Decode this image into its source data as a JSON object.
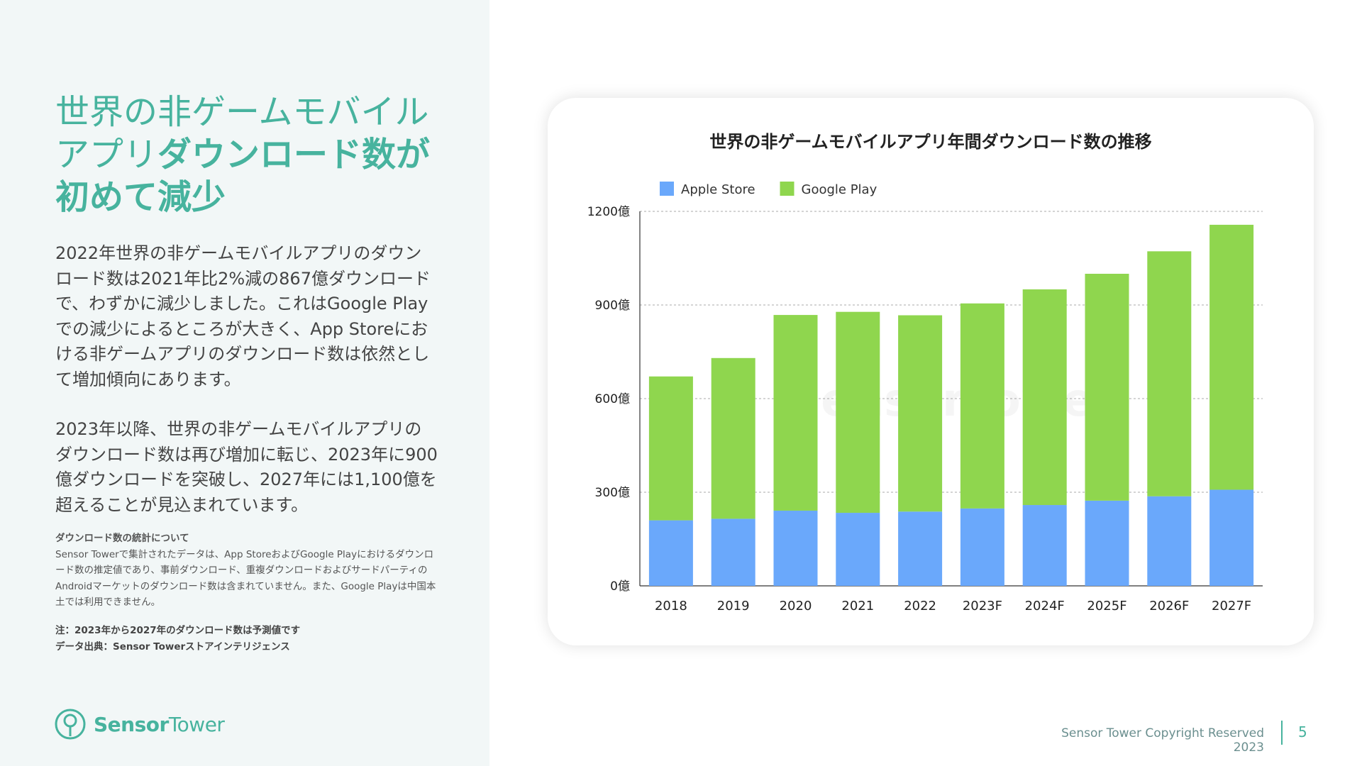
{
  "headline": {
    "part1": "世界の非ゲームモバイル",
    "part2": "アプリ",
    "part3": "ダウンロード数が初めて減少"
  },
  "body": {
    "para1": "2022年世界の非ゲームモバイルアプリのダウンロード数は2021年比2%減の867億ダウンロードで、わずかに減少しました。これはGoogle Playでの減少によるところが大きく、App Storeにおける非ゲームアプリのダウンロード数は依然として増加傾向にあります。",
    "para2": "2023年以降、世界の非ゲームモバイルアプリのダウンロード数は再び増加に転じ、2023年に900億ダウンロードを突破し、2027年には1,100億を超えることが見込まれています。"
  },
  "notes": {
    "title": "ダウンロード数の統計について",
    "text": "Sensor Towerで集計されたデータは、App StoreおよびGoogle Playにおけるダウンロード数の推定値であり、事前ダウンロード、重複ダウンロードおよびサードパーティのAndroidマーケットのダウンロード数は含まれていません。また、Google Playは中国本土では利用できません。",
    "note": "注：2023年から2027年のダウンロード数は予測値です",
    "source": "データ出典：Sensor Towerストアインテリジェンス"
  },
  "brand": {
    "name_bold": "Sensor",
    "name_light": "Tower",
    "icon": "sensor-tower-logo-icon"
  },
  "footer": {
    "copyright": "Sensor Tower Copyright Reserved 2023",
    "page": "5"
  },
  "colors": {
    "accent": "#47b39e",
    "apple": "#6aa8fb",
    "google": "#8fd64e"
  },
  "chart_data": {
    "type": "bar",
    "stacked": true,
    "title": "世界の非ゲームモバイルアプリ年間ダウンロード数の推移",
    "categories": [
      "2018",
      "2019",
      "2020",
      "2021",
      "2022",
      "2023F",
      "2024F",
      "2025F",
      "2026F",
      "2027F"
    ],
    "series": [
      {
        "name": "Apple Store",
        "color": "#6aa8fb",
        "values": [
          210,
          215,
          241,
          234,
          238,
          248,
          259,
          273,
          287,
          308
        ]
      },
      {
        "name": "Google Play",
        "color": "#8fd64e",
        "values": [
          461,
          515,
          627,
          644,
          629,
          657,
          691,
          727,
          785,
          849
        ]
      }
    ],
    "ylim": [
      0,
      1200
    ],
    "yticks": [
      0,
      300,
      600,
      900,
      1200
    ],
    "ytick_labels": [
      "0億",
      "300億",
      "600億",
      "900億",
      "1200億"
    ],
    "grid": true,
    "legend": "top-left",
    "watermark": "SensorTower"
  }
}
